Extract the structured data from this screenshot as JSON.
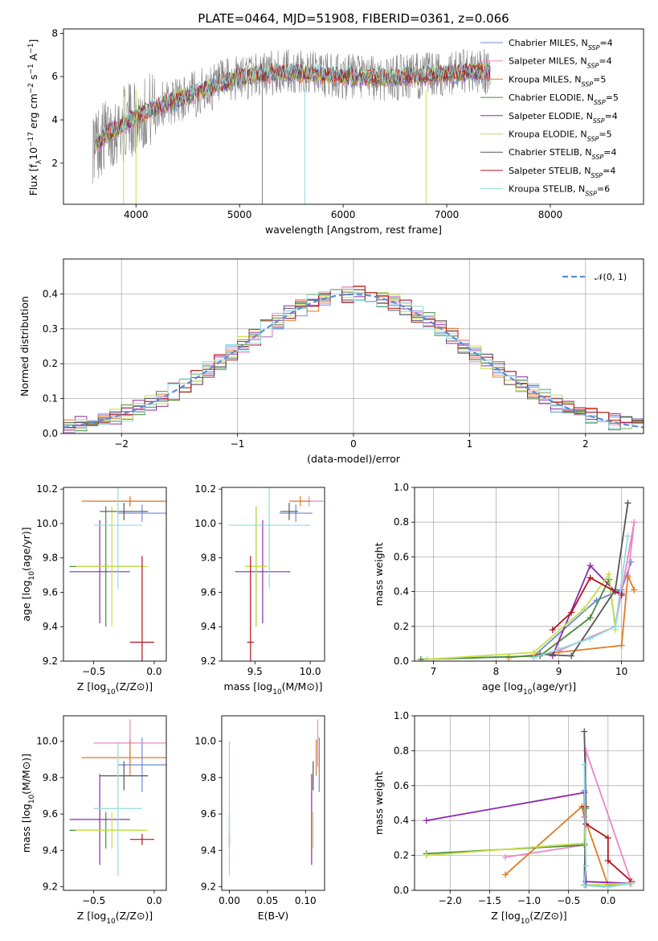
{
  "title": "PLATE=0464, MJD=51908, FIBERID=0361, z=0.066",
  "model_colors": [
    "#6a8ad8",
    "#e887c7",
    "#e07a25",
    "#4b8a3c",
    "#8d2ba8",
    "#c8e04a",
    "#555555",
    "#b5121b",
    "#8fdbe3"
  ],
  "panels": {
    "spectrum": {
      "xlabel": "wavelength [Angstrom, rest frame]",
      "ylabel": "Flux [f_λ 10^-17 erg cm^-2 s^-1 A^-1]",
      "xticks": [
        "4000",
        "5000",
        "6000",
        "7000",
        "8000"
      ],
      "yticks": [
        "2",
        "4",
        "6",
        "8"
      ],
      "xlim": [
        3300,
        8900
      ],
      "ylim": [
        0.1,
        8.2
      ],
      "data_color": "#808080",
      "legend": [
        {
          "name": "Chabrier MILES",
          "nssp": "4"
        },
        {
          "name": "Salpeter MILES",
          "nssp": "4"
        },
        {
          "name": "Kroupa MILES",
          "nssp": "5"
        },
        {
          "name": "Chabrier ELODIE",
          "nssp": "5"
        },
        {
          "name": "Salpeter ELODIE",
          "nssp": "4"
        },
        {
          "name": "Kroupa ELODIE",
          "nssp": "5"
        },
        {
          "name": "Chabrier STELIB",
          "nssp": "4"
        },
        {
          "name": "Salpeter STELIB",
          "nssp": "4"
        },
        {
          "name": "Kroupa STELIB",
          "nssp": "6"
        }
      ],
      "legend_prefix": "N",
      "legend_sub": "SSP"
    },
    "residuals": {
      "xlabel": "(data-model)/error",
      "ylabel": "Normed distribution",
      "xticks": [
        "−2",
        "−1",
        "0",
        "1",
        "2"
      ],
      "yticks": [
        "0.0",
        "0.1",
        "0.2",
        "0.3",
        "0.4"
      ],
      "xlim": [
        -2.5,
        2.5
      ],
      "ylim": [
        0,
        0.5
      ],
      "legend": "𝒩(0, 1)",
      "gauss_color": "#5b8dd6"
    },
    "age_vs_z": {
      "xlabel": "Z [log10(Z/Z⊙)]",
      "ylabel": "age [log10(age/yr)]",
      "xticks": [
        "−0.5",
        "0.0"
      ],
      "yticks": [
        "9.2",
        "9.4",
        "9.6",
        "9.8",
        "10.0",
        "10.2"
      ],
      "xlim": [
        -0.75,
        0.1
      ],
      "ylim": [
        9.2,
        10.21
      ]
    },
    "age_vs_mass": {
      "xlabel": "mass [log10(M/M⊙)]",
      "ylabel": "",
      "xticks": [
        "9.5",
        "10.0"
      ],
      "yticks": [
        "9.2",
        "9.4",
        "9.6",
        "9.8",
        "10.0",
        "10.2"
      ],
      "xlim": [
        9.2,
        10.13
      ],
      "ylim": [
        9.2,
        10.21
      ]
    },
    "weight_vs_age": {
      "xlabel": "age [log10(age/yr)]",
      "ylabel": "mass weight",
      "xticks": [
        "7",
        "8",
        "9",
        "10"
      ],
      "yticks": [
        "0.0",
        "0.2",
        "0.4",
        "0.6",
        "0.8",
        "1.0"
      ],
      "xlim": [
        6.7,
        10.35
      ],
      "ylim": [
        0,
        1
      ]
    },
    "mass_vs_z": {
      "xlabel": "Z [log10(Z/Z⊙)]",
      "ylabel": "mass [log10(M/M⊙)]",
      "xticks": [
        "−0.5",
        "0.0"
      ],
      "yticks": [
        "9.2",
        "9.4",
        "9.6",
        "9.8",
        "10.0"
      ],
      "xlim": [
        -0.75,
        0.1
      ],
      "ylim": [
        9.18,
        10.14
      ]
    },
    "mass_vs_ebv": {
      "xlabel": "E(B-V)",
      "ylabel": "",
      "xticks": [
        "0.00",
        "0.05",
        "0.10"
      ],
      "yticks": [
        "9.2",
        "9.4",
        "9.6",
        "9.8",
        "10.0"
      ],
      "xlim": [
        -0.01,
        0.125
      ],
      "ylim": [
        9.18,
        10.14
      ]
    },
    "weight_vs_z": {
      "xlabel": "Z [log10(Z/Z⊙)]",
      "ylabel": "mass weight",
      "xticks": [
        "−2.0",
        "−1.5",
        "−1.0",
        "−0.5",
        "0.0"
      ],
      "yticks": [
        "0.0",
        "0.2",
        "0.4",
        "0.6",
        "0.8",
        "1.0"
      ],
      "xlim": [
        -2.45,
        0.45
      ],
      "ylim": [
        0,
        1
      ]
    }
  },
  "chart_data": {
    "type": "line",
    "models": [
      {
        "name": "Chabrier MILES",
        "nssp": 4,
        "age": 10.06,
        "age_err_lo": 0.05,
        "age_err_hi": 0.05,
        "Z": -0.1,
        "Z_err_lo": 0.2,
        "Z_err_hi": 0.2,
        "mass": 9.87,
        "mass_err_lo": 0.15,
        "mass_err_hi": 0.15,
        "ebv": 0.118,
        "sfh_age": [
          8.6,
          9.6,
          10.0,
          10.15
        ],
        "sfh_w": [
          0.03,
          0.35,
          0.41,
          0.57
        ],
        "sfh_z": [
          -0.3,
          -0.28,
          0.0,
          0.3
        ],
        "sfh_zw": [
          0.57,
          0.03,
          0.02,
          0.04
        ]
      },
      {
        "name": "Salpeter MILES",
        "nssp": 4,
        "age": 10.13,
        "age_err_lo": 0.03,
        "age_err_hi": 0.03,
        "Z": -0.2,
        "Z_err_lo": 0.3,
        "Z_err_hi": 0.3,
        "mass": 9.99,
        "mass_err_lo": 0.13,
        "mass_err_hi": 0.13,
        "ebv": 0.116,
        "sfh_age": [
          9.0,
          9.9,
          10.2,
          10.1
        ],
        "sfh_w": [
          0.06,
          0.2,
          0.8,
          0.48
        ],
        "sfh_z": [
          -1.3,
          -0.3,
          -0.28,
          0.3
        ],
        "sfh_zw": [
          0.19,
          0.26,
          0.8,
          0.04
        ]
      },
      {
        "name": "Kroupa MILES",
        "nssp": 5,
        "age": 10.13,
        "age_err_lo": 0.03,
        "age_err_hi": 0.03,
        "Z": -0.2,
        "Z_err_lo": 0.4,
        "Z_err_hi": 0.4,
        "mass": 9.91,
        "mass_err_lo": 0.1,
        "mass_err_hi": 0.1,
        "ebv": 0.114,
        "sfh_age": [
          8.2,
          10.0,
          10.1,
          10.2
        ],
        "sfh_w": [
          0.02,
          0.09,
          0.49,
          0.41
        ],
        "sfh_z": [
          -1.3,
          -0.33,
          -0.3,
          0.0,
          0.28
        ],
        "sfh_zw": [
          0.09,
          0.48,
          0.42,
          0.03,
          0.04
        ]
      },
      {
        "name": "Chabrier ELODIE",
        "nssp": 5,
        "age": 9.75,
        "age_err_lo": 0.35,
        "age_err_hi": 0.35,
        "Z": -0.4,
        "Z_err_lo": 0.3,
        "Z_err_hi": 0.3,
        "mass": 9.51,
        "mass_err_lo": 0.1,
        "mass_err_hi": 0.1,
        "ebv": 0.0,
        "sfh_age": [
          6.8,
          8.7,
          9.5,
          9.8,
          9.9
        ],
        "sfh_w": [
          0.01,
          0.03,
          0.25,
          0.47,
          0.2
        ],
        "sfh_z": [
          -2.3,
          -0.3,
          -0.28,
          -0.3,
          0.0
        ],
        "sfh_zw": [
          0.21,
          0.26,
          0.47,
          0.03,
          0.02
        ]
      },
      {
        "name": "Salpeter ELODIE",
        "nssp": 4,
        "age": 9.72,
        "age_err_lo": 0.3,
        "age_err_hi": 0.3,
        "Z": -0.45,
        "Z_err_lo": 0.25,
        "Z_err_hi": 0.25,
        "mass": 9.57,
        "mass_err_lo": 0.25,
        "mass_err_hi": 0.25,
        "ebv": 0.108,
        "sfh_age": [
          8.9,
          9.5,
          9.9,
          10.0
        ],
        "sfh_w": [
          0.03,
          0.55,
          0.4,
          0.39
        ],
        "sfh_z": [
          -2.3,
          -0.3,
          -0.28,
          0.3
        ],
        "sfh_zw": [
          0.4,
          0.56,
          0.05,
          0.04
        ]
      },
      {
        "name": "Kroupa ELODIE",
        "nssp": 5,
        "age": 9.75,
        "age_err_lo": 0.35,
        "age_err_hi": 0.35,
        "Z": -0.35,
        "Z_err_lo": 0.3,
        "Z_err_hi": 0.3,
        "mass": 9.51,
        "mass_err_lo": 0.1,
        "mass_err_hi": 0.1,
        "ebv": 0.11,
        "sfh_age": [
          6.9,
          8.6,
          9.4,
          9.8,
          9.9
        ],
        "sfh_w": [
          0.01,
          0.05,
          0.3,
          0.5,
          0.18
        ],
        "sfh_z": [
          -2.3,
          -0.3,
          -0.28,
          -0.3,
          0.3
        ],
        "sfh_zw": [
          0.2,
          0.27,
          0.48,
          0.03,
          0.04
        ]
      },
      {
        "name": "Chabrier STELIB",
        "nssp": 4,
        "age": 10.07,
        "age_err_lo": 0.05,
        "age_err_hi": 0.05,
        "Z": -0.25,
        "Z_err_lo": 0.2,
        "Z_err_hi": 0.2,
        "mass": 9.81,
        "mass_err_lo": 0.08,
        "mass_err_hi": 0.08,
        "ebv": 0.11,
        "sfh_age": [
          8.7,
          9.2,
          9.9,
          10.1
        ],
        "sfh_w": [
          0.04,
          0.03,
          0.41,
          0.91
        ],
        "sfh_z": [
          -0.3,
          -0.28,
          -0.3,
          0.0
        ],
        "sfh_zw": [
          0.91,
          0.48,
          0.03,
          0.02
        ]
      },
      {
        "name": "Salpeter STELIB",
        "nssp": 4,
        "age": 9.31,
        "age_err_lo": 0.5,
        "age_err_hi": 0.5,
        "Z": -0.1,
        "Z_err_lo": 0.1,
        "Z_err_hi": 0.1,
        "mass": 9.46,
        "mass_err_lo": 0.03,
        "mass_err_hi": 0.03,
        "ebv": 0.0,
        "sfh_age": [
          8.9,
          9.2,
          9.5,
          10.0
        ],
        "sfh_w": [
          0.18,
          0.28,
          0.48,
          0.38
        ],
        "sfh_z": [
          -0.3,
          -0.28,
          0.0,
          0.0,
          0.3
        ],
        "sfh_zw": [
          0.48,
          0.38,
          0.3,
          0.17,
          0.05
        ]
      },
      {
        "name": "Kroupa STELIB",
        "nssp": 6,
        "age": 9.99,
        "age_err_lo": 0.37,
        "age_err_hi": 0.37,
        "Z": -0.3,
        "Z_err_lo": 0.2,
        "Z_err_hi": 0.2,
        "mass": 9.63,
        "mass_err_lo": 0.37,
        "mass_err_hi": 0.37,
        "ebv": 0.0,
        "sfh_age": [
          8.6,
          9.5,
          9.9,
          10.1
        ],
        "sfh_w": [
          0.02,
          0.13,
          0.2,
          0.72
        ],
        "sfh_z": [
          -0.3,
          -0.28,
          -0.3,
          0.0,
          0.3
        ],
        "sfh_zw": [
          0.72,
          0.14,
          0.03,
          0.02,
          0.04
        ]
      }
    ],
    "residual_gaussian": {
      "mean": 0,
      "sigma": 1
    }
  }
}
